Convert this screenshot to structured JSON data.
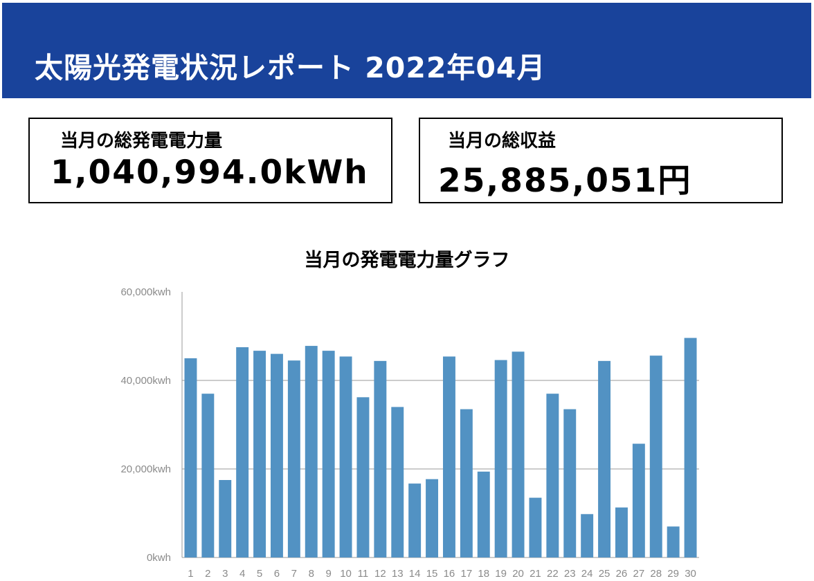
{
  "header": {
    "title": "太陽光発電状況レポート 2022年04月"
  },
  "cards": {
    "generation": {
      "label": "当月の総発電電力量",
      "value": "1,040,994.0kWh"
    },
    "revenue": {
      "label": "当月の総収益",
      "value": "25,885,051円"
    }
  },
  "colors": {
    "header_bg": "#19439b",
    "bar": "#5292c3"
  },
  "chart_data": {
    "type": "bar",
    "title": "当月の発電電力量グラフ",
    "xlabel": "",
    "ylabel": "",
    "ylim": [
      0,
      60000
    ],
    "grid": true,
    "ytick_labels": [
      "0kwh",
      "20,000kwh",
      "40,000kwh",
      "60,000kwh"
    ],
    "ytick_values": [
      0,
      20000,
      40000,
      60000
    ],
    "categories": [
      "1",
      "2",
      "3",
      "4",
      "5",
      "6",
      "7",
      "8",
      "9",
      "10",
      "11",
      "12",
      "13",
      "14",
      "15",
      "16",
      "17",
      "18",
      "19",
      "20",
      "21",
      "22",
      "23",
      "24",
      "25",
      "26",
      "27",
      "28",
      "29",
      "30"
    ],
    "values": [
      45000,
      37000,
      17500,
      47500,
      46700,
      46000,
      44500,
      47800,
      46700,
      45400,
      36200,
      44400,
      34000,
      16700,
      17700,
      45400,
      33500,
      19400,
      44600,
      46500,
      13500,
      37000,
      33500,
      9800,
      44400,
      11300,
      25700,
      45600,
      7000,
      49600
    ]
  }
}
